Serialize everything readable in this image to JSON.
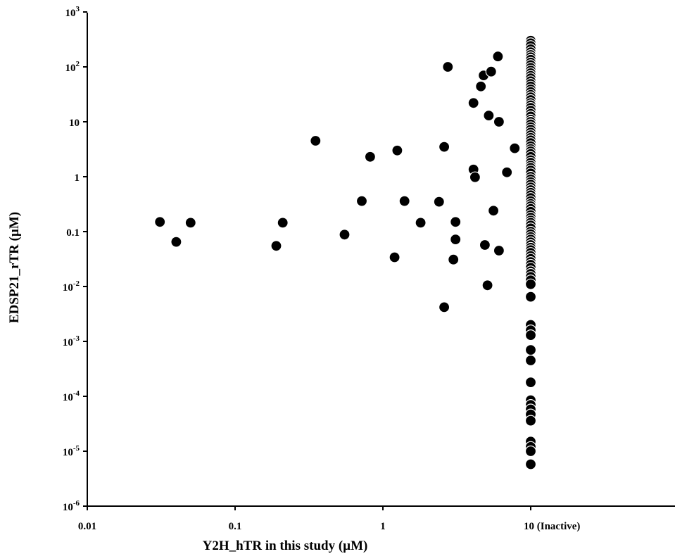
{
  "chart_data": {
    "type": "scatter",
    "xlabel": "Y2H_hTR in this study (µM)",
    "ylabel": "EDSP21_rTR (µM)",
    "xscale": "log",
    "yscale": "log",
    "xlim": [
      0.01,
      60
    ],
    "ylim": [
      1e-06,
      1000
    ],
    "grid": false,
    "legend": "none",
    "point_color": "#000000",
    "x_ticks": [
      {
        "value": 0.01,
        "label": "0.01"
      },
      {
        "value": 0.1,
        "label": "0.1"
      },
      {
        "value": 1,
        "label": "1"
      },
      {
        "value": 10,
        "label": "10 (Inactive)"
      }
    ],
    "y_ticks": [
      {
        "value": 1e-06,
        "base": "10",
        "exp": "-6"
      },
      {
        "value": 1e-05,
        "base": "10",
        "exp": "-5"
      },
      {
        "value": 0.0001,
        "base": "10",
        "exp": "-4"
      },
      {
        "value": 0.001,
        "base": "10",
        "exp": "-3"
      },
      {
        "value": 0.01,
        "base": "10",
        "exp": "-2"
      },
      {
        "value": 0.1,
        "base": "0.1",
        "exp": ""
      },
      {
        "value": 1,
        "base": "1",
        "exp": ""
      },
      {
        "value": 10,
        "base": "10",
        "exp": ""
      },
      {
        "value": 100,
        "base": "10",
        "exp": "2"
      },
      {
        "value": 1000,
        "base": "10",
        "exp": "3"
      }
    ],
    "active_points": [
      {
        "x": 0.031,
        "y": 0.15
      },
      {
        "x": 0.04,
        "y": 0.065
      },
      {
        "x": 0.05,
        "y": 0.145
      },
      {
        "x": 0.19,
        "y": 0.055
      },
      {
        "x": 0.21,
        "y": 0.145
      },
      {
        "x": 0.35,
        "y": 4.5
      },
      {
        "x": 0.55,
        "y": 0.088
      },
      {
        "x": 0.72,
        "y": 0.36
      },
      {
        "x": 0.82,
        "y": 2.3
      },
      {
        "x": 1.2,
        "y": 0.034
      },
      {
        "x": 1.25,
        "y": 3.0
      },
      {
        "x": 1.4,
        "y": 0.36
      },
      {
        "x": 1.8,
        "y": 0.145
      },
      {
        "x": 2.4,
        "y": 0.35
      },
      {
        "x": 2.6,
        "y": 3.5
      },
      {
        "x": 2.6,
        "y": 0.0042
      },
      {
        "x": 2.75,
        "y": 100
      },
      {
        "x": 3.0,
        "y": 0.031
      },
      {
        "x": 3.1,
        "y": 0.15
      },
      {
        "x": 3.1,
        "y": 0.072
      },
      {
        "x": 4.1,
        "y": 22
      },
      {
        "x": 4.1,
        "y": 1.35
      },
      {
        "x": 4.2,
        "y": 0.98
      },
      {
        "x": 4.6,
        "y": 44
      },
      {
        "x": 4.8,
        "y": 70
      },
      {
        "x": 4.9,
        "y": 0.057
      },
      {
        "x": 5.1,
        "y": 0.0105
      },
      {
        "x": 5.2,
        "y": 13
      },
      {
        "x": 5.4,
        "y": 82
      },
      {
        "x": 5.6,
        "y": 0.24
      },
      {
        "x": 6.0,
        "y": 155
      },
      {
        "x": 6.1,
        "y": 10
      },
      {
        "x": 6.1,
        "y": 0.045
      },
      {
        "x": 6.9,
        "y": 1.2
      },
      {
        "x": 7.8,
        "y": 3.3
      }
    ],
    "inactive_points": {
      "x": 10,
      "y": [
        300,
        270,
        240,
        210,
        185,
        165,
        150,
        135,
        120,
        108,
        96,
        86,
        77,
        69,
        62,
        55,
        49,
        44,
        39,
        35,
        31,
        28,
        25,
        22,
        20,
        18,
        16,
        14,
        12.5,
        11,
        10,
        9,
        8,
        7.2,
        6.4,
        5.7,
        5.1,
        4.6,
        4.1,
        3.6,
        3.2,
        2.9,
        2.6,
        2.3,
        2.0,
        1.8,
        1.6,
        1.45,
        1.3,
        1.15,
        1.0,
        0.9,
        0.8,
        0.72,
        0.64,
        0.57,
        0.51,
        0.46,
        0.41,
        0.36,
        0.32,
        0.29,
        0.26,
        0.23,
        0.2,
        0.18,
        0.16,
        0.145,
        0.13,
        0.115,
        0.1,
        0.09,
        0.08,
        0.072,
        0.064,
        0.057,
        0.051,
        0.046,
        0.041,
        0.036,
        0.032,
        0.028,
        0.025,
        0.022,
        0.019,
        0.017,
        0.015,
        0.013,
        0.011,
        0.0065,
        0.002,
        0.0016,
        0.0013,
        0.0007,
        0.00045,
        0.00018,
        8.5e-05,
        7e-05,
        5.8e-05,
        4.7e-05,
        3.6e-05,
        1.5e-05,
        1.2e-05,
        1e-05,
        5.8e-06
      ]
    }
  }
}
